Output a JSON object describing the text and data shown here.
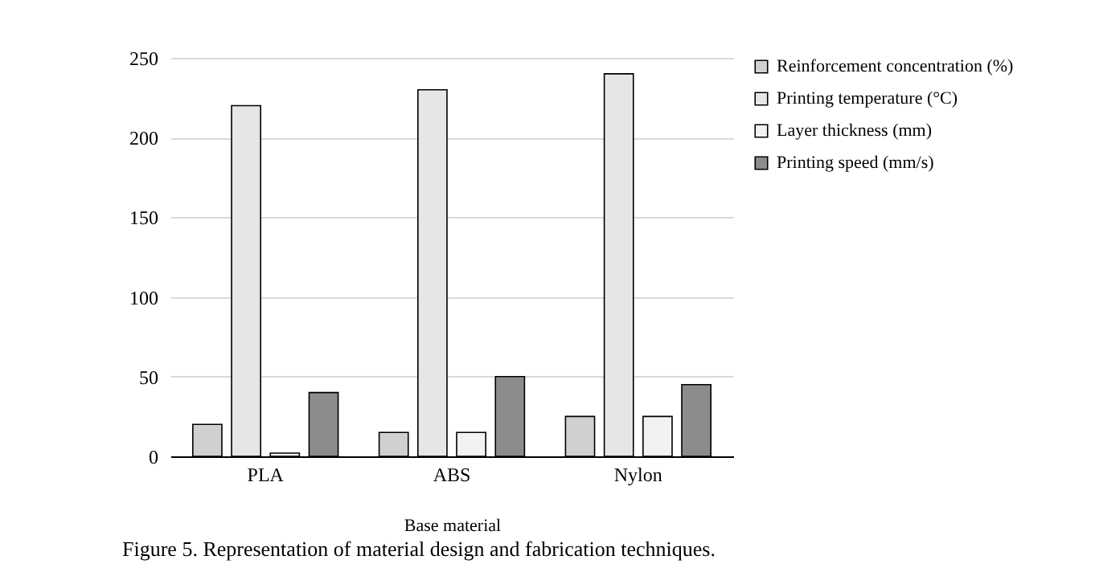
{
  "chart_data": {
    "type": "bar",
    "categories": [
      "PLA",
      "ABS",
      "Nylon"
    ],
    "series": [
      {
        "name": "Reinforcement concentration (%)",
        "color": "#d0d0d0",
        "values": [
          20,
          15,
          25
        ]
      },
      {
        "name": "Printing temperature (°C)",
        "color": "#e6e6e6",
        "values": [
          220,
          230,
          240
        ]
      },
      {
        "name": "Layer thickness (mm)",
        "color": "#f2f2f2",
        "values": [
          2,
          15,
          25
        ]
      },
      {
        "name": "Printing speed (mm/s)",
        "color": "#8c8c8c",
        "values": [
          40,
          50,
          45
        ]
      }
    ],
    "xlabel": "Base material",
    "ylim": [
      0,
      250
    ],
    "yticks": [
      0,
      50,
      100,
      150,
      200,
      250
    ],
    "grid": "y",
    "legend": "right",
    "annotations": [
      "Figure 5. Representation of material design and fabrication techniques."
    ]
  }
}
